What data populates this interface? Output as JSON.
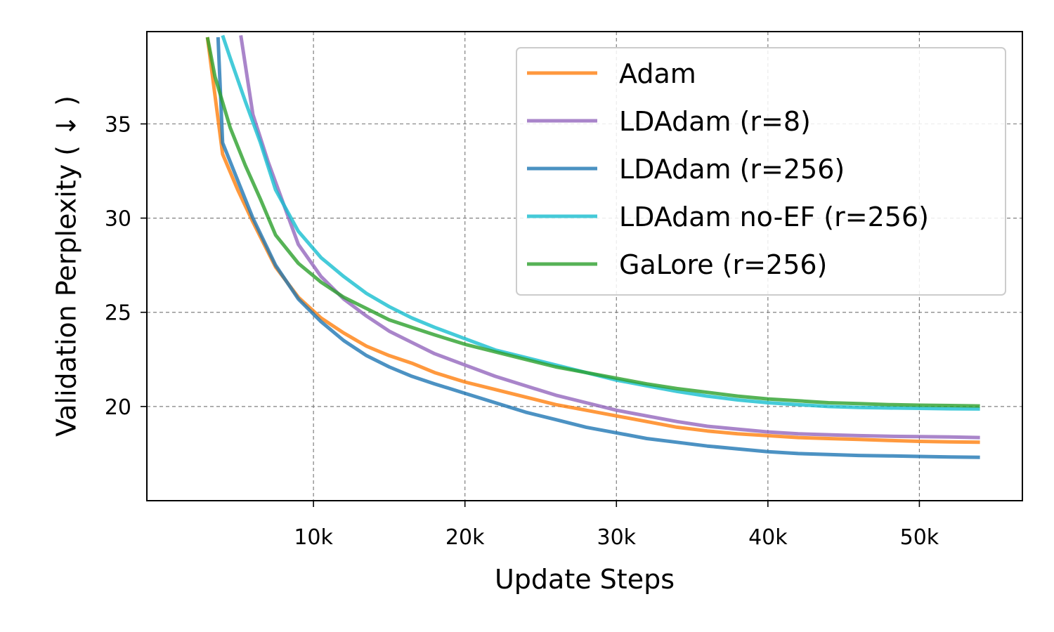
{
  "chart_data": {
    "type": "line",
    "xlabel": "Update Steps",
    "ylabel": "Validation Perplexity ( ↓ )",
    "xlim": [
      -1000,
      56800
    ],
    "ylim": [
      15.0,
      39.9
    ],
    "x_ticks": [
      10000,
      20000,
      30000,
      40000,
      50000
    ],
    "x_tick_labels": [
      "10k",
      "20k",
      "30k",
      "40k",
      "50k"
    ],
    "y_ticks": [
      20,
      25,
      30,
      35
    ],
    "y_tick_labels": [
      "20",
      "25",
      "30",
      "35"
    ],
    "grid": true,
    "legend_position": "top-right",
    "series": [
      {
        "name": "Adam",
        "color": "#ff7f0e",
        "x": [
          3000,
          4000,
          5000,
          6000,
          7500,
          9000,
          10500,
          12000,
          13500,
          15000,
          16500,
          18000,
          20000,
          22000,
          24000,
          26000,
          28000,
          30000,
          32000,
          34000,
          36000,
          38000,
          40000,
          42000,
          44000,
          46000,
          48000,
          50000,
          52000,
          54000
        ],
        "y": [
          39.6,
          33.4,
          31.5,
          29.8,
          27.4,
          25.8,
          24.7,
          23.9,
          23.2,
          22.7,
          22.3,
          21.8,
          21.3,
          20.9,
          20.5,
          20.1,
          19.8,
          19.5,
          19.2,
          18.9,
          18.7,
          18.55,
          18.45,
          18.35,
          18.3,
          18.25,
          18.2,
          18.15,
          18.12,
          18.1
        ]
      },
      {
        "name": "LDAdam (r=8)",
        "color": "#9467bd",
        "x": [
          5200,
          6000,
          7000,
          8000,
          9000,
          10500,
          12000,
          13500,
          15000,
          16500,
          18000,
          20000,
          22000,
          24000,
          26000,
          28000,
          30000,
          32000,
          34000,
          36000,
          38000,
          40000,
          42000,
          44000,
          46000,
          48000,
          50000,
          52000,
          54000
        ],
        "y": [
          39.7,
          35.5,
          33.0,
          30.8,
          28.6,
          26.9,
          25.7,
          24.8,
          24.0,
          23.4,
          22.8,
          22.2,
          21.6,
          21.1,
          20.6,
          20.2,
          19.8,
          19.5,
          19.2,
          18.95,
          18.8,
          18.65,
          18.55,
          18.5,
          18.45,
          18.42,
          18.4,
          18.38,
          18.35
        ]
      },
      {
        "name": "LDAdam (r=256)",
        "color": "#1f77b4",
        "x": [
          3700,
          4000,
          5000,
          6000,
          7500,
          9000,
          10500,
          12000,
          13500,
          15000,
          16500,
          18000,
          20000,
          22000,
          24000,
          26000,
          28000,
          30000,
          32000,
          34000,
          36000,
          38000,
          40000,
          42000,
          44000,
          46000,
          48000,
          50000,
          52000,
          54000
        ],
        "y": [
          39.6,
          34.0,
          32.0,
          30.0,
          27.5,
          25.7,
          24.5,
          23.5,
          22.7,
          22.1,
          21.6,
          21.2,
          20.7,
          20.2,
          19.7,
          19.3,
          18.9,
          18.6,
          18.3,
          18.1,
          17.9,
          17.75,
          17.6,
          17.5,
          17.45,
          17.4,
          17.38,
          17.35,
          17.32,
          17.3
        ]
      },
      {
        "name": "LDAdam no-EF (r=256)",
        "color": "#17becf",
        "x": [
          4000,
          4500,
          5500,
          6500,
          7500,
          9000,
          10500,
          12000,
          13500,
          15000,
          16500,
          18000,
          20000,
          22000,
          24000,
          26000,
          28000,
          30000,
          32000,
          34000,
          36000,
          38000,
          40000,
          42000,
          44000,
          46000,
          48000,
          50000,
          52000,
          54000
        ],
        "y": [
          39.7,
          38.5,
          36.2,
          34.0,
          31.5,
          29.3,
          27.9,
          26.9,
          26.0,
          25.3,
          24.7,
          24.2,
          23.6,
          23.0,
          22.6,
          22.2,
          21.8,
          21.4,
          21.1,
          20.8,
          20.55,
          20.35,
          20.2,
          20.1,
          20.0,
          19.95,
          19.92,
          19.9,
          19.88,
          19.87
        ]
      },
      {
        "name": "GaLore (r=256)",
        "color": "#2ca02c",
        "x": [
          3000,
          3500,
          4500,
          5500,
          6500,
          7500,
          9000,
          10500,
          12000,
          13500,
          15000,
          16500,
          18000,
          20000,
          22000,
          24000,
          26000,
          28000,
          30000,
          32000,
          34000,
          36000,
          38000,
          40000,
          42000,
          44000,
          46000,
          48000,
          50000,
          52000,
          54000
        ],
        "y": [
          39.6,
          37.5,
          34.8,
          32.8,
          31.0,
          29.1,
          27.6,
          26.6,
          25.8,
          25.2,
          24.6,
          24.2,
          23.8,
          23.3,
          22.9,
          22.5,
          22.1,
          21.8,
          21.5,
          21.2,
          20.95,
          20.75,
          20.55,
          20.4,
          20.3,
          20.2,
          20.15,
          20.1,
          20.07,
          20.05,
          20.03
        ]
      }
    ]
  }
}
